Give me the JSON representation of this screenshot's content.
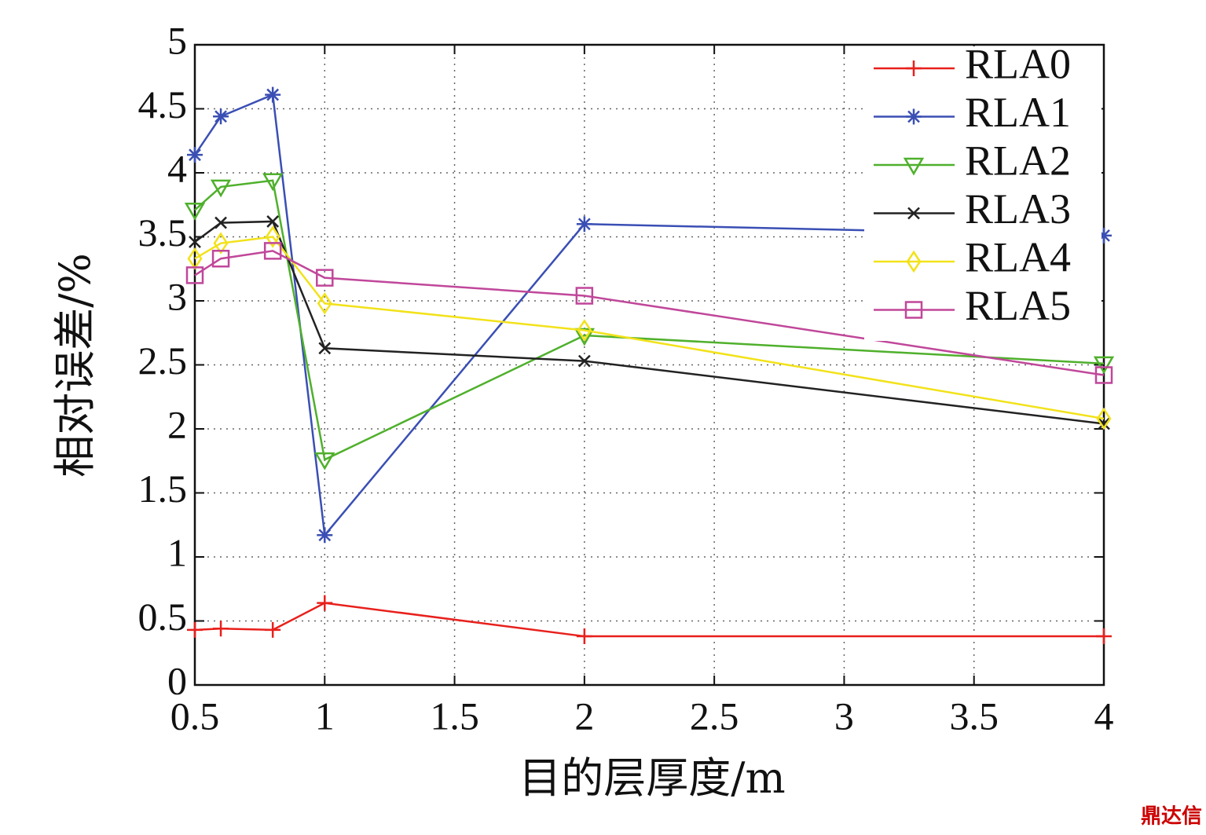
{
  "watermark": "鼎达信",
  "chart_data": {
    "type": "line",
    "x_label": "目的层厚度/m",
    "y_label": "相对误差/%",
    "x": [
      0.5,
      0.6,
      0.8,
      1,
      2,
      4
    ],
    "xlim": [
      0.5,
      4
    ],
    "ylim": [
      0,
      5
    ],
    "xticks": [
      0.5,
      1,
      1.5,
      2,
      2.5,
      3,
      3.5,
      4
    ],
    "yticks": [
      0,
      0.5,
      1,
      1.5,
      2,
      2.5,
      3,
      3.5,
      4,
      4.5,
      5
    ],
    "grid": true,
    "legend": "upper right",
    "series": [
      {
        "name": "RLA0",
        "color": "#e8201c",
        "marker": "plus",
        "values": [
          0.43,
          0.44,
          0.43,
          0.64,
          0.38,
          0.38
        ]
      },
      {
        "name": "RLA1",
        "color": "#3a4fb4",
        "marker": "star",
        "values": [
          4.14,
          4.44,
          4.61,
          1.17,
          3.6,
          3.51
        ]
      },
      {
        "name": "RLA2",
        "color": "#4fb02c",
        "marker": "triangle-down",
        "values": [
          3.71,
          3.89,
          3.94,
          1.76,
          2.73,
          2.51
        ]
      },
      {
        "name": "RLA3",
        "color": "#222222",
        "marker": "x",
        "values": [
          3.46,
          3.61,
          3.62,
          2.63,
          2.53,
          2.04
        ]
      },
      {
        "name": "RLA4",
        "color": "#f2e21a",
        "marker": "diamond",
        "values": [
          3.33,
          3.45,
          3.5,
          2.98,
          2.77,
          2.08
        ]
      },
      {
        "name": "RLA5",
        "color": "#c0479a",
        "marker": "square",
        "values": [
          3.2,
          3.33,
          3.39,
          3.18,
          3.04,
          2.42
        ]
      }
    ]
  }
}
